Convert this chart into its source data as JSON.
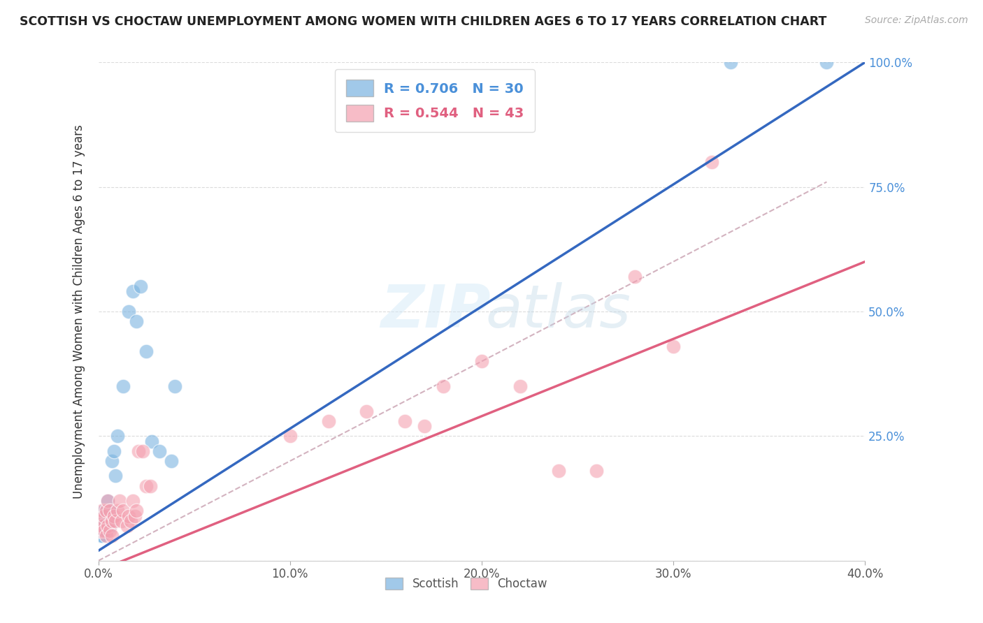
{
  "title": "SCOTTISH VS CHOCTAW UNEMPLOYMENT AMONG WOMEN WITH CHILDREN AGES 6 TO 17 YEARS CORRELATION CHART",
  "source": "Source: ZipAtlas.com",
  "ylabel": "Unemployment Among Women with Children Ages 6 to 17 years",
  "xlim": [
    0.0,
    0.4
  ],
  "ylim": [
    0.0,
    1.0
  ],
  "xtick_labels": [
    "0.0%",
    "10.0%",
    "20.0%",
    "30.0%",
    "40.0%"
  ],
  "xtick_vals": [
    0.0,
    0.1,
    0.2,
    0.3,
    0.4
  ],
  "ytick_labels_right": [
    "25.0%",
    "50.0%",
    "75.0%",
    "100.0%"
  ],
  "ytick_vals_right": [
    0.25,
    0.5,
    0.75,
    1.0
  ],
  "scottish_R": 0.706,
  "scottish_N": 30,
  "choctaw_R": 0.544,
  "choctaw_N": 43,
  "scottish_color": "#7ab3e0",
  "choctaw_color": "#f4a0b0",
  "blue_line_color": "#3468c0",
  "pink_line_color": "#e06080",
  "diag_line_color": "#c8a0b0",
  "scottish_label": "Scottish",
  "choctaw_label": "Choctaw",
  "scottish_x": [
    0.001,
    0.001,
    0.001,
    0.002,
    0.002,
    0.002,
    0.003,
    0.003,
    0.004,
    0.004,
    0.005,
    0.005,
    0.006,
    0.006,
    0.007,
    0.008,
    0.009,
    0.01,
    0.013,
    0.016,
    0.018,
    0.02,
    0.022,
    0.025,
    0.028,
    0.032,
    0.038,
    0.04,
    0.33,
    0.38
  ],
  "scottish_y": [
    0.05,
    0.06,
    0.07,
    0.05,
    0.06,
    0.08,
    0.07,
    0.1,
    0.06,
    0.09,
    0.08,
    0.12,
    0.07,
    0.1,
    0.2,
    0.22,
    0.17,
    0.25,
    0.35,
    0.5,
    0.54,
    0.48,
    0.55,
    0.42,
    0.24,
    0.22,
    0.2,
    0.35,
    1.0,
    1.0
  ],
  "choctaw_x": [
    0.001,
    0.001,
    0.002,
    0.002,
    0.003,
    0.003,
    0.004,
    0.004,
    0.005,
    0.005,
    0.006,
    0.006,
    0.007,
    0.007,
    0.008,
    0.009,
    0.01,
    0.011,
    0.012,
    0.013,
    0.015,
    0.016,
    0.017,
    0.018,
    0.019,
    0.02,
    0.021,
    0.023,
    0.025,
    0.027,
    0.1,
    0.12,
    0.14,
    0.16,
    0.17,
    0.18,
    0.2,
    0.22,
    0.24,
    0.26,
    0.28,
    0.3,
    0.32
  ],
  "choctaw_y": [
    0.06,
    0.08,
    0.07,
    0.1,
    0.06,
    0.09,
    0.05,
    0.1,
    0.07,
    0.12,
    0.06,
    0.1,
    0.08,
    0.05,
    0.09,
    0.08,
    0.1,
    0.12,
    0.08,
    0.1,
    0.07,
    0.09,
    0.08,
    0.12,
    0.09,
    0.1,
    0.22,
    0.22,
    0.15,
    0.15,
    0.25,
    0.28,
    0.3,
    0.28,
    0.27,
    0.35,
    0.4,
    0.35,
    0.18,
    0.18,
    0.57,
    0.43,
    0.8
  ],
  "blue_line_x": [
    0.0,
    0.4
  ],
  "blue_line_y": [
    0.02,
    1.0
  ],
  "pink_line_x": [
    0.0,
    0.4
  ],
  "pink_line_y": [
    -0.02,
    0.6
  ],
  "diag_line_x": [
    0.0,
    0.38
  ],
  "diag_line_y": [
    0.0,
    0.76
  ]
}
